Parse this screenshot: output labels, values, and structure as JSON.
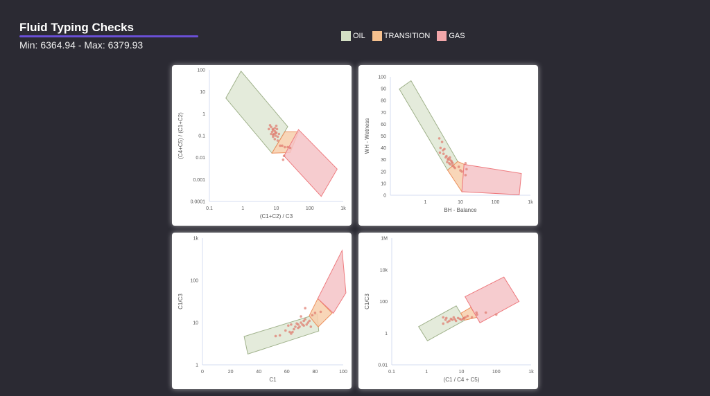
{
  "header": {
    "title": "Fluid Typing Checks",
    "subtitle": "Min: 6364.94 - Max: 6379.93"
  },
  "legend": [
    {
      "label": "OIL",
      "color": "#d3dfc4"
    },
    {
      "label": "TRANSITION",
      "color": "#f5c08e"
    },
    {
      "label": "GAS",
      "color": "#f2a6aa"
    }
  ],
  "colors": {
    "oil_fill": "#dfe8d5",
    "oil_stroke": "#9fb18a",
    "transition_fill": "#f7cfab",
    "transition_stroke": "#ec8f5c",
    "gas_fill": "#f5c3c7",
    "gas_stroke": "#ee7a7e",
    "point": "#e0786b",
    "axis": "#d6dcf0"
  },
  "chart_data": [
    {
      "type": "scatter",
      "xlabel": "(C1+C2) / C3",
      "ylabel": "(C4+C5) / (C1+C2)",
      "xscale": "log",
      "yscale": "log",
      "xlim": [
        0.1,
        1000
      ],
      "ylim": [
        0.0001,
        100
      ],
      "xticks": [
        [
          0.1,
          "0.1"
        ],
        [
          1,
          "1"
        ],
        [
          10,
          "10"
        ],
        [
          100,
          "100"
        ],
        [
          1000,
          "1k"
        ]
      ],
      "yticks": [
        [
          0.0001,
          "0.0001"
        ],
        [
          0.001,
          "0.001"
        ],
        [
          0.01,
          "0.01"
        ],
        [
          0.1,
          "0.1"
        ],
        [
          1,
          "1"
        ],
        [
          10,
          "10"
        ],
        [
          100,
          "100"
        ]
      ],
      "regions": {
        "oil": [
          [
            0.31,
            5.2
          ],
          [
            0.88,
            88
          ],
          [
            22,
            0.26
          ],
          [
            7.4,
            0.016
          ]
        ],
        "transition": [
          [
            7.4,
            0.016
          ],
          [
            18,
            0.15
          ],
          [
            46,
            0.15
          ],
          [
            26,
            0.017
          ]
        ],
        "gas": [
          [
            17,
            0.012
          ],
          [
            46,
            0.19
          ],
          [
            660,
            0.003
          ],
          [
            220,
            0.00017
          ]
        ]
      },
      "points": [
        [
          6,
          0.2
        ],
        [
          7,
          0.25
        ],
        [
          8,
          0.18
        ],
        [
          9,
          0.22
        ],
        [
          10,
          0.28
        ],
        [
          7.5,
          0.15
        ],
        [
          8.5,
          0.12
        ],
        [
          9.5,
          0.1
        ],
        [
          10,
          0.14
        ],
        [
          11,
          0.09
        ],
        [
          8,
          0.09
        ],
        [
          9,
          0.07
        ],
        [
          6.5,
          0.3
        ],
        [
          7,
          0.12
        ],
        [
          10.5,
          0.2
        ],
        [
          12,
          0.12
        ],
        [
          9,
          0.16
        ],
        [
          8,
          0.11
        ],
        [
          11,
          0.06
        ],
        [
          13,
          0.035
        ],
        [
          15,
          0.035
        ],
        [
          18,
          0.03
        ],
        [
          22,
          0.03
        ],
        [
          26,
          0.028
        ],
        [
          17,
          0.012
        ],
        [
          16,
          0.008
        ],
        [
          9.5,
          0.13
        ],
        [
          7.8,
          0.2
        ]
      ]
    },
    {
      "type": "scatter",
      "xlabel": "BH - Balance",
      "ylabel": "WH - Wetness",
      "xscale": "log",
      "yscale": "linear",
      "xlim": [
        0.1,
        1000
      ],
      "ylim": [
        0,
        100
      ],
      "xticks": [
        [
          1,
          "1"
        ],
        [
          10,
          "10"
        ],
        [
          100,
          "100"
        ],
        [
          1000,
          "1k"
        ]
      ],
      "yticks": [
        [
          0,
          "0"
        ],
        [
          10,
          "10"
        ],
        [
          20,
          "20"
        ],
        [
          30,
          "30"
        ],
        [
          40,
          "40"
        ],
        [
          50,
          "50"
        ],
        [
          60,
          "60"
        ],
        [
          70,
          "70"
        ],
        [
          80,
          "80"
        ],
        [
          90,
          "90"
        ],
        [
          100,
          "100"
        ]
      ],
      "regions": {
        "oil": [
          [
            0.18,
            89.7
          ],
          [
            0.39,
            96.7
          ],
          [
            8.4,
            28.5
          ],
          [
            4.3,
            21.2
          ]
        ],
        "transition": [
          [
            4.3,
            21.2
          ],
          [
            8.4,
            28.5
          ],
          [
            13,
            26
          ],
          [
            11,
            3
          ]
        ],
        "gas": [
          [
            11,
            3
          ],
          [
            12.7,
            26
          ],
          [
            550,
            18.4
          ],
          [
            480,
            0.4
          ]
        ]
      },
      "points": [
        [
          2.5,
          48
        ],
        [
          3,
          45
        ],
        [
          2.7,
          40
        ],
        [
          3.2,
          38
        ],
        [
          2.6,
          36
        ],
        [
          3.5,
          39
        ],
        [
          3.3,
          35
        ],
        [
          4,
          33
        ],
        [
          4.5,
          31
        ],
        [
          5,
          30
        ],
        [
          5.5,
          29
        ],
        [
          4.2,
          28
        ],
        [
          4.8,
          27
        ],
        [
          5.2,
          26
        ],
        [
          6,
          25
        ],
        [
          5.7,
          28
        ],
        [
          4.4,
          30
        ],
        [
          3.8,
          32
        ],
        [
          6.5,
          24
        ],
        [
          7,
          23
        ],
        [
          9,
          24
        ],
        [
          10,
          21
        ],
        [
          14,
          27
        ],
        [
          15,
          22
        ],
        [
          14,
          17
        ],
        [
          11,
          20
        ],
        [
          5,
          32
        ],
        [
          6,
          27
        ]
      ]
    },
    {
      "type": "scatter",
      "xlabel": "C1",
      "ylabel": "C1/C3",
      "xscale": "linear",
      "yscale": "log",
      "xlim": [
        0,
        100
      ],
      "ylim": [
        1,
        1000
      ],
      "xticks": [
        [
          0,
          "0"
        ],
        [
          20,
          "20"
        ],
        [
          40,
          "40"
        ],
        [
          60,
          "60"
        ],
        [
          80,
          "80"
        ],
        [
          100,
          "100"
        ]
      ],
      "yticks": [
        [
          1,
          "1"
        ],
        [
          10,
          "10"
        ],
        [
          100,
          "100"
        ],
        [
          1000,
          "1k"
        ]
      ],
      "regions": {
        "oil": [
          [
            29.6,
            4.7
          ],
          [
            81.6,
            16
          ],
          [
            82.6,
            6.3
          ],
          [
            32.2,
            1.8
          ]
        ],
        "transition": [
          [
            75.8,
            14.4
          ],
          [
            81.9,
            37
          ],
          [
            92.1,
            16.7
          ],
          [
            82.2,
            7.9
          ]
        ],
        "gas": [
          [
            81.9,
            37
          ],
          [
            99.2,
            510
          ],
          [
            101.9,
            50.7
          ],
          [
            93,
            16.7
          ]
        ]
      },
      "points": [
        [
          52,
          4.8
        ],
        [
          55,
          5
        ],
        [
          59,
          6.5
        ],
        [
          62,
          6
        ],
        [
          61,
          8.5
        ],
        [
          63,
          9
        ],
        [
          64,
          6
        ],
        [
          65,
          7
        ],
        [
          66,
          8
        ],
        [
          67,
          9.5
        ],
        [
          68,
          7.5
        ],
        [
          69,
          8
        ],
        [
          70,
          10
        ],
        [
          70,
          14
        ],
        [
          71,
          9
        ],
        [
          72,
          8.5
        ],
        [
          72,
          11
        ],
        [
          73,
          22
        ],
        [
          73,
          12
        ],
        [
          74,
          9
        ],
        [
          75,
          10
        ],
        [
          76,
          11
        ],
        [
          77,
          8
        ],
        [
          78,
          15
        ],
        [
          80,
          17
        ],
        [
          84,
          18
        ],
        [
          63,
          5.5
        ],
        [
          68,
          9
        ]
      ]
    },
    {
      "type": "scatter",
      "xlabel": "(C1 / C4 + C5)",
      "ylabel": "C1/C3",
      "xscale": "log",
      "yscale": "log",
      "xlim": [
        0.1,
        1000
      ],
      "ylim": [
        0.01,
        1000000
      ],
      "xticks": [
        [
          0.1,
          "0.1"
        ],
        [
          1,
          "1"
        ],
        [
          10,
          "10"
        ],
        [
          100,
          "100"
        ],
        [
          1000,
          "1k"
        ]
      ],
      "yticks": [
        [
          0.01,
          "0.01"
        ],
        [
          1,
          "1"
        ],
        [
          100,
          "100"
        ],
        [
          10000,
          "10k"
        ],
        [
          1000000,
          "1M"
        ]
      ],
      "regions": {
        "oil": [
          [
            0.59,
            2.6
          ],
          [
            7.1,
            53
          ],
          [
            12.5,
            6.7
          ],
          [
            1.06,
            0.33
          ]
        ],
        "transition": [
          [
            9.6,
            18
          ],
          [
            18.6,
            42
          ],
          [
            28,
            10
          ],
          [
            12.5,
            6.7
          ]
        ],
        "gas": [
          [
            12.7,
            200
          ],
          [
            165,
            3500
          ],
          [
            450,
            100
          ],
          [
            34,
            4.5
          ]
        ]
      },
      "points": [
        [
          3,
          10
        ],
        [
          3.5,
          7
        ],
        [
          4,
          5
        ],
        [
          4.5,
          6
        ],
        [
          5,
          8
        ],
        [
          5.5,
          7
        ],
        [
          6,
          10
        ],
        [
          6.5,
          7.5
        ],
        [
          7,
          6
        ],
        [
          8,
          9
        ],
        [
          9,
          8
        ],
        [
          10,
          7
        ],
        [
          11,
          8
        ],
        [
          12,
          9
        ],
        [
          3,
          4
        ],
        [
          3.7,
          9
        ],
        [
          13,
          10
        ],
        [
          15,
          12
        ],
        [
          20,
          10
        ],
        [
          27,
          20
        ],
        [
          28,
          15
        ],
        [
          50,
          20
        ],
        [
          100,
          15
        ]
      ]
    }
  ]
}
